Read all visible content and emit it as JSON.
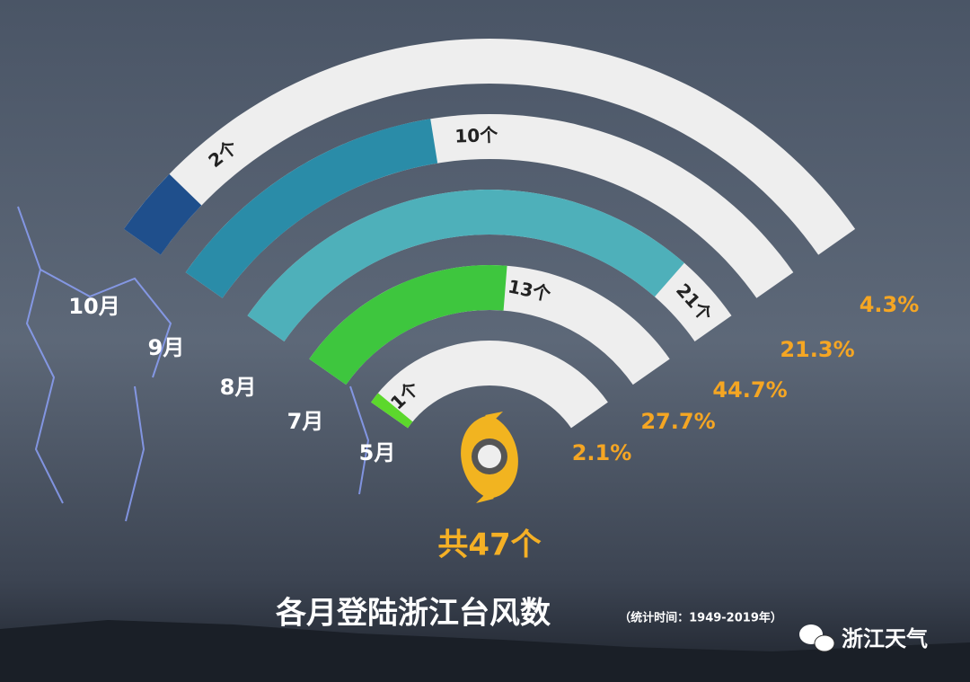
{
  "chart_data": {
    "type": "radial-bar",
    "title": "各月登陆浙江台风数",
    "subtitle": "（统计时间：1949-2019年）",
    "categories": [
      "10月",
      "9月",
      "8月",
      "7月",
      "5月"
    ],
    "values": [
      2,
      10,
      21,
      13,
      1
    ],
    "value_labels": [
      "2个",
      "10个",
      "21个",
      "13个",
      "1个"
    ],
    "colors": [
      "#1f4f8c",
      "#2a8ca8",
      "#4eb0ba",
      "#3ec63e",
      "#5cd82c"
    ],
    "shares": [
      4.3,
      21.3,
      44.7,
      27.7,
      2.1
    ],
    "share_labels": [
      "4.3%",
      "21.3%",
      "44.7%",
      "27.7%",
      "2.1%"
    ],
    "xlim": [
      0,
      24
    ],
    "total": 47,
    "total_label": "共47个",
    "brand": "浙江天气"
  }
}
